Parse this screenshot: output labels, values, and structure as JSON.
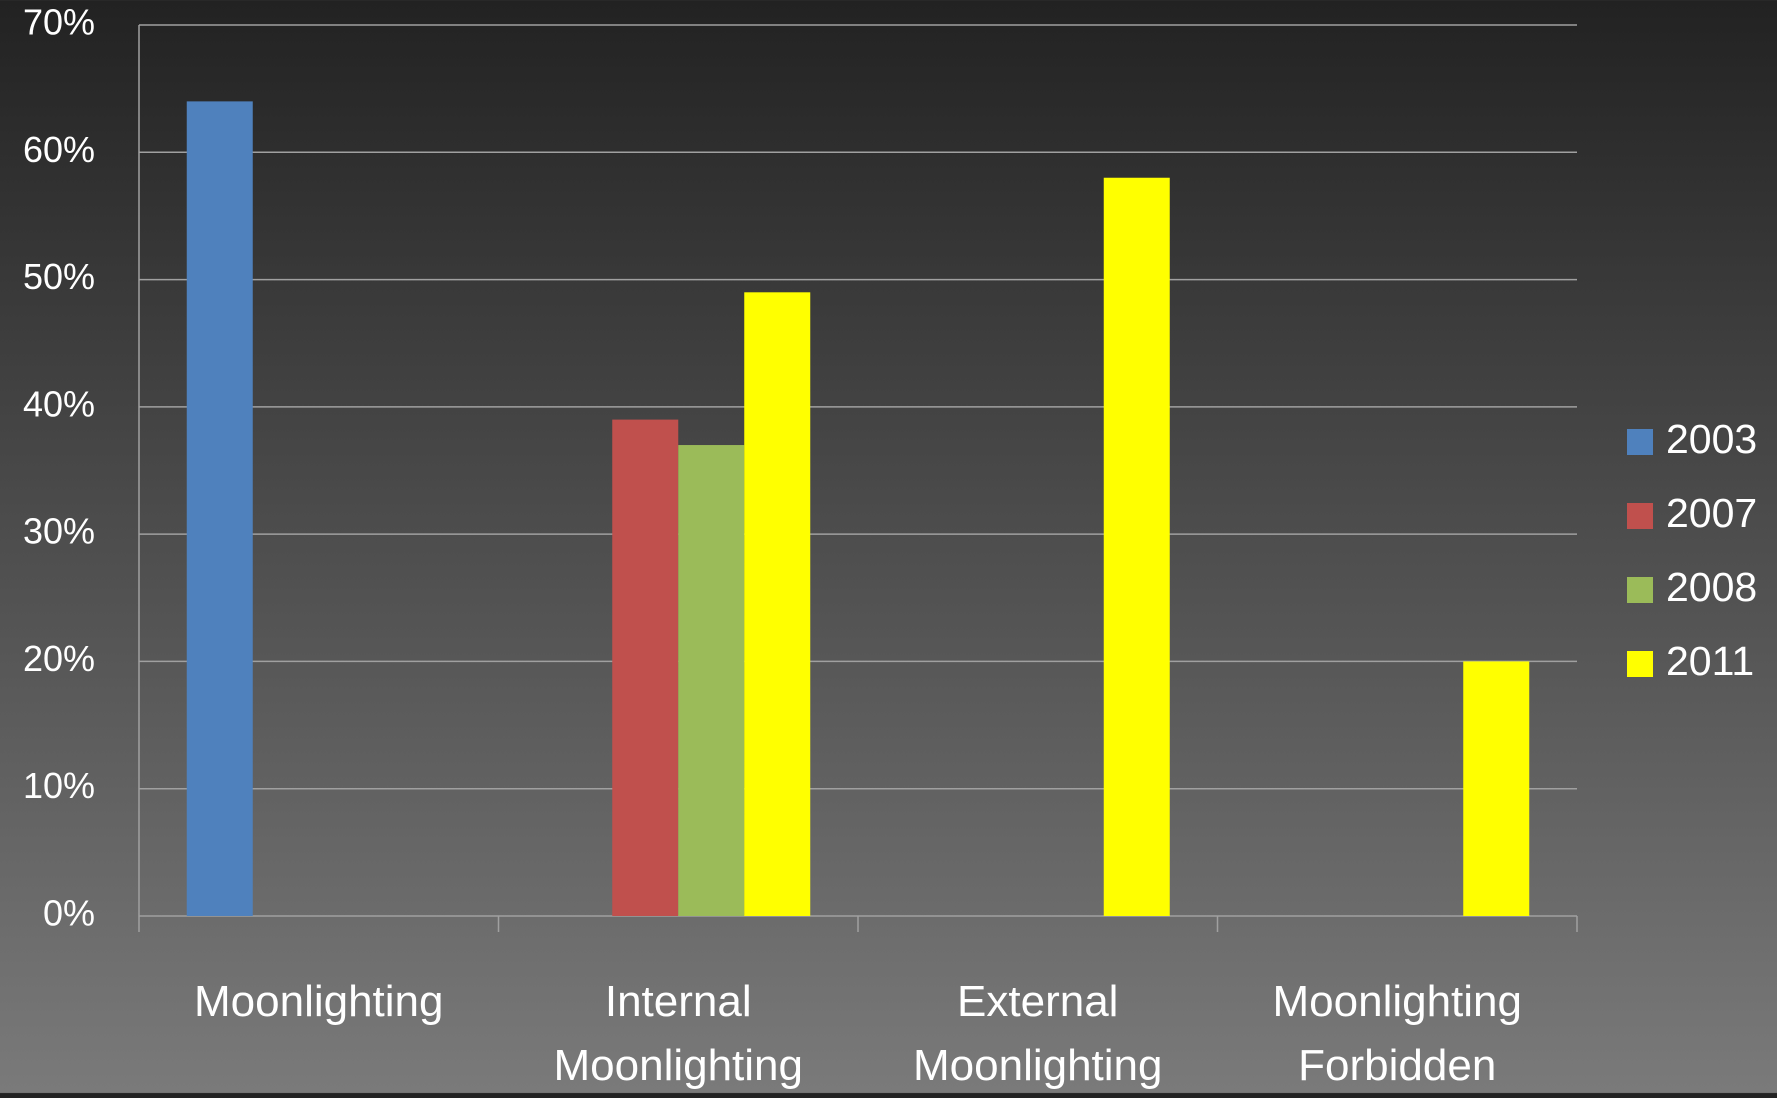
{
  "chart_data": {
    "type": "bar",
    "categories": [
      "Moonlighting",
      "Internal Moonlighting",
      "External Moonlighting",
      "Moonlighting Forbidden"
    ],
    "series": [
      {
        "name": "2003",
        "color": "#4f81bd",
        "values": [
          64,
          null,
          null,
          null
        ]
      },
      {
        "name": "2007",
        "color": "#c0504d",
        "values": [
          null,
          39,
          null,
          null
        ]
      },
      {
        "name": "2008",
        "color": "#9bbb59",
        "values": [
          null,
          37,
          null,
          null
        ]
      },
      {
        "name": "2011",
        "color": "#ffff00",
        "values": [
          null,
          49,
          58,
          20
        ]
      }
    ],
    "ylim": [
      0,
      70
    ],
    "yticks": [
      {
        "value": 0,
        "label": "0%"
      },
      {
        "value": 10,
        "label": "10%"
      },
      {
        "value": 20,
        "label": "20%"
      },
      {
        "value": 30,
        "label": "30%"
      },
      {
        "value": 40,
        "label": "40%"
      },
      {
        "value": 50,
        "label": "50%"
      },
      {
        "value": 60,
        "label": "60%"
      },
      {
        "value": 70,
        "label": "70%"
      }
    ],
    "grid": true,
    "legend": "right"
  }
}
